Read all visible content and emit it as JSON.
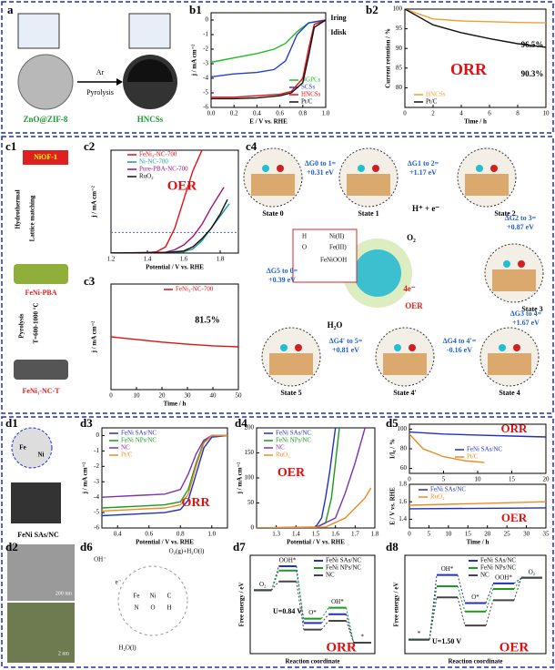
{
  "panels": {
    "a": {
      "label": "a",
      "texts": [
        "ZnO@ZIF-8",
        "Ar",
        "Pyrolysis",
        "HNCSs"
      ]
    },
    "b1": {
      "label": "b1",
      "type": "line",
      "xlabel": "E / V vs. RHE",
      "ylabel": "j / mA cm⁻²",
      "xlim": [
        0,
        1
      ],
      "ylim": [
        -6,
        0.5
      ],
      "xticks": [
        {
          "value": 0,
          "label": "0.0"
        },
        0.2,
        0.4,
        0.6,
        0.8,
        {
          "value": 1,
          "label": "1.0"
        }
      ],
      "yticks": [
        0,
        -1,
        -2,
        -3,
        -4,
        -5,
        -6
      ],
      "series": [
        {
          "name": "NGPCs",
          "color": "#22bb22",
          "x": [
            0,
            0.2,
            0.4,
            0.55,
            0.65,
            0.75,
            0.85,
            1.0
          ],
          "values": [
            -2.9,
            -2.6,
            -2.3,
            -2.0,
            -1.6,
            -0.8,
            -0.2,
            0
          ]
        },
        {
          "name": "SCSs",
          "color": "#1f3fd0",
          "x": [
            0,
            0.2,
            0.4,
            0.55,
            0.65,
            0.75,
            0.85,
            1.0
          ],
          "values": [
            -3.9,
            -3.7,
            -3.6,
            -3.4,
            -2.8,
            -1.0,
            -0.2,
            0
          ]
        },
        {
          "name": "HNCSs",
          "color": "#e01010",
          "x": [
            0,
            0.2,
            0.4,
            0.6,
            0.7,
            0.8,
            0.85,
            0.9,
            1.0
          ],
          "values": [
            -5.3,
            -5.3,
            -5.2,
            -5.1,
            -4.9,
            -4.0,
            -2.0,
            -0.3,
            0
          ]
        },
        {
          "name": "Pt/C",
          "color": "#111111",
          "x": [
            0,
            0.2,
            0.4,
            0.6,
            0.7,
            0.8,
            0.85,
            0.9,
            1.0
          ],
          "values": [
            -5.4,
            -5.4,
            -5.35,
            -5.2,
            -5.0,
            -4.3,
            -2.5,
            -0.5,
            0
          ]
        }
      ],
      "annotations": [
        "Iring",
        "Idisk"
      ]
    },
    "b2": {
      "label": "b2",
      "type": "line",
      "xlabel": "Time / h",
      "ylabel": "Current retention / %",
      "xlim": [
        0,
        10
      ],
      "ylim": [
        75,
        100
      ],
      "xticks": [
        0,
        2,
        4,
        6,
        8,
        10
      ],
      "yticks": [
        80,
        85,
        90,
        95,
        100
      ],
      "series": [
        {
          "name": "HNCSs",
          "color": "#f0a030",
          "x": [
            0,
            2,
            4,
            6,
            8,
            10
          ],
          "values": [
            100,
            97.5,
            97,
            96.8,
            96.6,
            96.5
          ]
        },
        {
          "name": "Pt/C",
          "color": "#111111",
          "x": [
            0,
            2,
            4,
            6,
            8,
            10
          ],
          "values": [
            100,
            96,
            94,
            92.5,
            91.2,
            90.3
          ]
        }
      ],
      "annotations": [
        "96.5%",
        "90.3%",
        "ORR"
      ]
    },
    "c1": {
      "label": "c1",
      "texts": [
        "NiOF-1",
        "Hydrothermal",
        "Lattice matching",
        "FeNi-PBA",
        "Pyrolysis",
        "T=600-1000 °C",
        "FeNi₃-NC-T"
      ]
    },
    "c2": {
      "label": "c2",
      "type": "line",
      "xlabel": "Potential / V vs. RHE",
      "ylabel": "j / mA cm⁻²",
      "xlim": [
        1.2,
        1.9
      ],
      "ylim": [
        0,
        250
      ],
      "xticks": [
        1.2,
        1.4,
        1.6,
        1.8
      ],
      "yticks": [],
      "reference_line": 50,
      "series": [
        {
          "name": "FeNi₃-NC-700",
          "color": "#e01010",
          "x": [
            1.2,
            1.4,
            1.45,
            1.5,
            1.55,
            1.6,
            1.65,
            1.7
          ],
          "values": [
            0,
            1,
            3,
            15,
            60,
            130,
            200,
            250
          ]
        },
        {
          "name": "Ni-NC-700",
          "color": "#1a9e8e",
          "x": [
            1.2,
            1.5,
            1.6,
            1.65,
            1.7,
            1.75,
            1.8,
            1.85
          ],
          "values": [
            0,
            1,
            3,
            10,
            30,
            60,
            90,
            120
          ]
        },
        {
          "name": "Pure-PBA-NC-700",
          "color": "#a0107a",
          "x": [
            1.2,
            1.5,
            1.55,
            1.6,
            1.65,
            1.7,
            1.75,
            1.82
          ],
          "values": [
            0,
            2,
            8,
            20,
            40,
            70,
            110,
            160
          ]
        },
        {
          "name": "RuO₂",
          "color": "#111111",
          "x": [
            1.2,
            1.5,
            1.6,
            1.65,
            1.7,
            1.75,
            1.8,
            1.84
          ],
          "values": [
            0,
            1,
            5,
            15,
            35,
            60,
            95,
            130
          ]
        }
      ],
      "annotations": [
        "OER"
      ]
    },
    "c3": {
      "label": "c3",
      "type": "line",
      "xlabel": "Time / h",
      "ylabel": "j / mA cm⁻²",
      "xlim": [
        0,
        50
      ],
      "ylim": [
        0,
        20
      ],
      "xticks": [
        0,
        10,
        20,
        30,
        40,
        50
      ],
      "yticks": [],
      "series": [
        {
          "name": "FeNi₃-NC-700",
          "color": "#e01010",
          "x": [
            0,
            10,
            20,
            30,
            40,
            50
          ],
          "values": [
            10,
            9.5,
            9,
            8.6,
            8.3,
            8.1
          ]
        }
      ],
      "annotations": [
        "81.5%"
      ]
    },
    "c4": {
      "label": "c4",
      "states": [
        "State 0",
        "State 1",
        "State 2",
        "State 3",
        "State 4",
        "State 4'",
        "State 5"
      ],
      "dG": [
        {
          "label": "ΔG0 to 1=",
          "value": "+0.31 eV"
        },
        {
          "label": "ΔG1 to 2=",
          "value": "+1.17 eV"
        },
        {
          "label": "ΔG2 to 3=",
          "value": "+0.87 eV"
        },
        {
          "label": "ΔG3 to 4=",
          "value": "+1.67 eV"
        },
        {
          "label": "ΔG4 to 4'=",
          "value": "-0.16 eV"
        },
        {
          "label": "ΔG4' to 5=",
          "value": "+0.81 eV"
        },
        {
          "label": "ΔG5 to 0=",
          "value": "+0.39 eV"
        }
      ],
      "legend": [
        "H",
        "Ni(II)",
        "O",
        "Fe(III)",
        "FeNiOOH"
      ],
      "texts": [
        "O₂",
        "4e⁻",
        "OER",
        "H₂O",
        "H⁺ + e⁻"
      ]
    },
    "d1": {
      "label": "d1",
      "texts": [
        "FeNi SAs/NC",
        "Fe",
        "Ni"
      ]
    },
    "d3": {
      "label": "d3",
      "type": "line",
      "xlabel": "Potential / V vs. RHE",
      "ylabel": "j / mA cm⁻²",
      "xlim": [
        0.3,
        1.1
      ],
      "ylim": [
        -6,
        0.5
      ],
      "xticks": [
        0.4,
        0.6,
        0.8,
        {
          "value": 1,
          "label": "1.0"
        }
      ],
      "yticks": [
        0,
        -1,
        -2,
        -3,
        -4,
        -5,
        -6
      ],
      "series": [
        {
          "name": "FeNi SAs/NC",
          "color": "#2030c0",
          "x": [
            0.3,
            0.5,
            0.7,
            0.8,
            0.85,
            0.9,
            0.95,
            1.0,
            1.1
          ],
          "values": [
            -5.2,
            -5.1,
            -5.0,
            -4.8,
            -4.2,
            -2.5,
            -0.8,
            -0.1,
            0
          ]
        },
        {
          "name": "FeNi NPs/NC",
          "color": "#1a9a20",
          "x": [
            0.3,
            0.5,
            0.7,
            0.8,
            0.85,
            0.9,
            0.95,
            1.0,
            1.1
          ],
          "values": [
            -4.7,
            -4.6,
            -4.5,
            -4.3,
            -3.5,
            -1.8,
            -0.4,
            0,
            0
          ]
        },
        {
          "name": "NC",
          "color": "#8030b0",
          "x": [
            0.3,
            0.5,
            0.7,
            0.8,
            0.85,
            0.9,
            0.95,
            1.0,
            1.1
          ],
          "values": [
            -4.0,
            -3.9,
            -3.8,
            -3.5,
            -2.5,
            -1.2,
            -0.3,
            0,
            0
          ]
        },
        {
          "name": "Pt/C",
          "color": "#f08a20",
          "x": [
            0.3,
            0.5,
            0.7,
            0.8,
            0.85,
            0.9,
            0.95,
            1.0,
            1.1
          ],
          "values": [
            -4.9,
            -4.8,
            -4.7,
            -4.5,
            -3.8,
            -2.0,
            -0.5,
            0,
            0
          ]
        }
      ],
      "annotations": [
        "ORR"
      ]
    },
    "d4": {
      "label": "d4",
      "type": "line",
      "xlabel": "Potential / V vs. RHE",
      "ylabel": "j / mA cm⁻²",
      "xlim": [
        1.2,
        1.8
      ],
      "ylim": [
        0,
        200
      ],
      "xticks": [
        1.3,
        1.4,
        1.5,
        1.6,
        1.7,
        1.8
      ],
      "yticks": [
        0,
        50,
        100,
        150,
        200
      ],
      "series": [
        {
          "name": "FeNi SAs/NC",
          "color": "#2030c0",
          "x": [
            1.2,
            1.5,
            1.53,
            1.55,
            1.57,
            1.6
          ],
          "values": [
            0,
            2,
            20,
            60,
            110,
            200
          ]
        },
        {
          "name": "FeNi NPs/NC",
          "color": "#1a9a20",
          "x": [
            1.2,
            1.5,
            1.55,
            1.58,
            1.6,
            1.62
          ],
          "values": [
            0,
            1,
            10,
            60,
            130,
            200
          ]
        },
        {
          "name": "NC",
          "color": "#8030b0",
          "x": [
            1.2,
            1.5,
            1.6,
            1.65,
            1.7,
            1.75
          ],
          "values": [
            0,
            1,
            20,
            70,
            130,
            200
          ]
        },
        {
          "name": "RuO₂",
          "color": "#f08a20",
          "x": [
            1.2,
            1.55,
            1.65,
            1.7,
            1.75,
            1.78
          ],
          "values": [
            0,
            2,
            20,
            40,
            60,
            80
          ]
        }
      ],
      "annotations": [
        "OER"
      ]
    },
    "d5": {
      "label": "d5",
      "type": "line",
      "ylabel": "I/I₀ / %",
      "xlim": [
        0,
        20
      ],
      "ylim": [
        55,
        105
      ],
      "xticks": [
        0,
        5,
        10,
        15,
        20
      ],
      "yticks": [
        60,
        80,
        100
      ],
      "series": [
        {
          "name": "FeNi SAs/NC",
          "color": "#2030c0",
          "x": [
            0,
            5,
            10,
            15,
            20
          ],
          "values": [
            97,
            95,
            94,
            93,
            92
          ]
        },
        {
          "name": "Pt/C",
          "color": "#f08a20",
          "x": [
            0,
            2,
            5,
            8,
            11
          ],
          "values": [
            95,
            80,
            72,
            68,
            66
          ]
        }
      ],
      "annotations": [
        "ORR"
      ]
    },
    "d5b": {
      "type": "line",
      "xlabel": "Time / h",
      "ylabel": "E / V vs. RHE",
      "xlim": [
        0,
        35
      ],
      "ylim": [
        1.3,
        1.8
      ],
      "xticks": [
        0,
        5,
        10,
        15,
        20,
        25,
        30,
        35
      ],
      "yticks": [
        1.4,
        1.6,
        1.8
      ],
      "series": [
        {
          "name": "FeNi SAs/NC",
          "color": "#2030c0",
          "x": [
            0,
            35
          ],
          "values": [
            1.52,
            1.53
          ]
        },
        {
          "name": "RuO₂",
          "color": "#f08a20",
          "x": [
            0,
            35
          ],
          "values": [
            1.56,
            1.6
          ]
        }
      ],
      "annotations": [
        "OER"
      ]
    },
    "d2": {
      "label": "d2",
      "texts": [
        "200 nm",
        "2 nm"
      ]
    },
    "d6": {
      "label": "d6",
      "texts": [
        "OH⁻",
        "O₂(g)+H₂O(l)",
        "H₂O(l)",
        "e⁻",
        "Fe",
        "Ni",
        "C",
        "N",
        "O",
        "H"
      ]
    },
    "d7": {
      "label": "d7",
      "type": "step",
      "xlabel": "Reaction coordinate",
      "ylabel": "Free energy / eV",
      "ylim": [
        -0.5,
        4
      ],
      "categories": [
        "O₂",
        "OOH*",
        "O*",
        "OH*",
        "*"
      ],
      "series": [
        {
          "name": "FeNi SAs/NC",
          "color": "#2030c0",
          "values": [
            2.4,
            3.5,
            0.9,
            1.3,
            0
          ]
        },
        {
          "name": "FeNi NPs/NC",
          "color": "#1a9a20",
          "values": [
            2.4,
            3.3,
            1.1,
            1.6,
            0
          ]
        },
        {
          "name": "NC",
          "color": "#444444",
          "values": [
            2.4,
            2.8,
            0.6,
            1.0,
            0
          ]
        }
      ],
      "annotations": [
        "U=0.84 V",
        "ORR"
      ]
    },
    "d8": {
      "label": "d8",
      "type": "step",
      "xlabel": "Reaction coordinate",
      "ylabel": "Free energy / eV",
      "ylim": [
        -0.5,
        3
      ],
      "categories": [
        "*",
        "OH*",
        "O*",
        "OOH*",
        "O₂"
      ],
      "series": [
        {
          "name": "FeNi SAs/NC",
          "color": "#2030c0",
          "values": [
            0,
            2.3,
            1.3,
            2.0,
            2.2
          ]
        },
        {
          "name": "FeNi NPs/NC",
          "color": "#1a9a20",
          "values": [
            0,
            1.9,
            1.0,
            1.8,
            2.2
          ]
        },
        {
          "name": "NC",
          "color": "#444444",
          "values": [
            0,
            1.5,
            0.5,
            1.4,
            2.2
          ]
        }
      ],
      "annotations": [
        "U=1.50 V",
        "OER"
      ]
    }
  }
}
